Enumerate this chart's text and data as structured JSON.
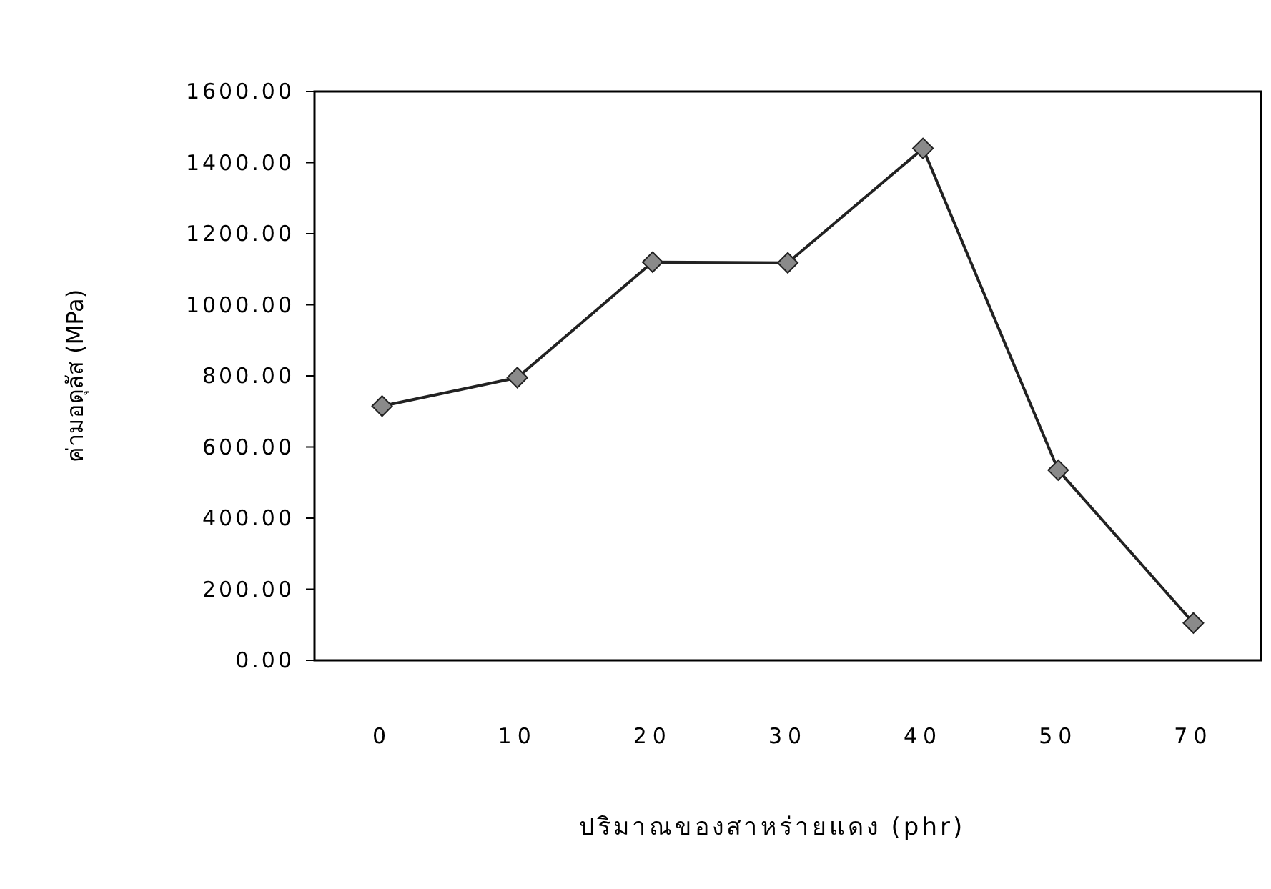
{
  "chart_data": {
    "type": "line",
    "xlabel": "ปริมาณของสาหร่ายแดง (phr)",
    "ylabel": "ค่ามอดุลัส (MPa)",
    "categories": [
      "0",
      "10",
      "20",
      "30",
      "40",
      "50",
      "70"
    ],
    "series": [
      {
        "color": "#222222",
        "values": [
          715,
          795,
          1120,
          1118,
          1440,
          535,
          105
        ]
      }
    ],
    "ylim": [
      0,
      1600
    ],
    "yticks": [
      {
        "value": 0,
        "label": "0.00"
      },
      {
        "value": 200,
        "label": "200.00"
      },
      {
        "value": 400,
        "label": "400.00"
      },
      {
        "value": 600,
        "label": "600.00"
      },
      {
        "value": 800,
        "label": "800.00"
      },
      {
        "value": 1000,
        "label": "1000.00"
      },
      {
        "value": 1200,
        "label": "1200.00"
      },
      {
        "value": 1400,
        "label": "1400.00"
      },
      {
        "value": 1600,
        "label": "1600.00"
      }
    ],
    "marker": "diamond",
    "line_style": "solid",
    "grid": false
  }
}
